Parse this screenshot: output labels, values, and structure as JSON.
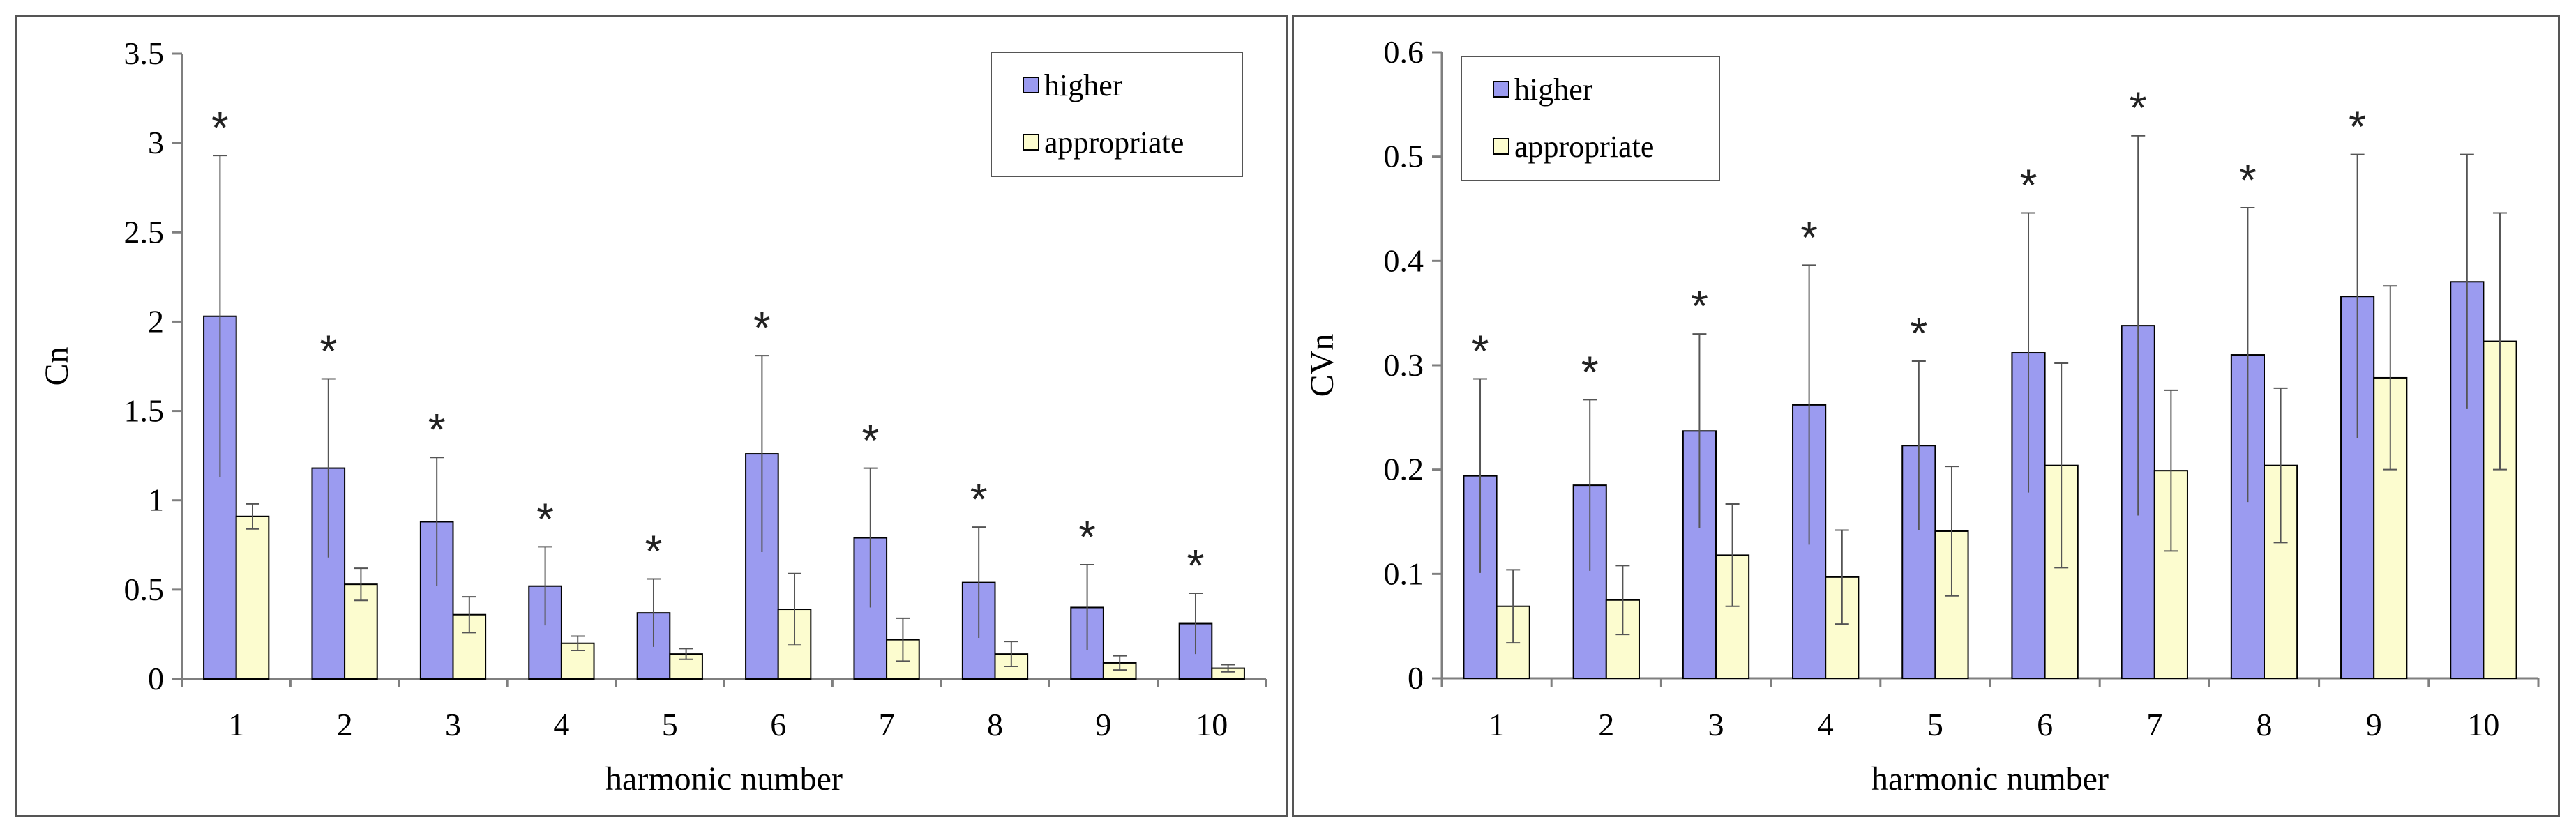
{
  "colors": {
    "higher": "#9b9bf0",
    "appropriate": "#fcfccf",
    "axis": "#7f7f7f",
    "bar_stroke": "#000000"
  },
  "chart_data": [
    {
      "type": "bar",
      "title": "",
      "xlabel": "harmonic number",
      "ylabel": "Cn",
      "ylim": [
        0,
        3.5
      ],
      "yticks": [
        0,
        0.5,
        1,
        1.5,
        2,
        2.5,
        3,
        3.5
      ],
      "ytick_labels": [
        "0",
        "0.5",
        "1",
        "1.5",
        "2",
        "2.5",
        "3",
        "3.5"
      ],
      "categories": [
        "1",
        "2",
        "3",
        "4",
        "5",
        "6",
        "7",
        "8",
        "9",
        "10"
      ],
      "legend_position": "top-right",
      "significance_marker": "*",
      "significant": [
        true,
        true,
        true,
        true,
        true,
        true,
        true,
        true,
        true,
        true
      ],
      "series": [
        {
          "name": "higher",
          "values": [
            2.03,
            1.18,
            0.88,
            0.52,
            0.37,
            1.26,
            0.79,
            0.54,
            0.4,
            0.31
          ],
          "errors": [
            0.9,
            0.5,
            0.36,
            0.22,
            0.19,
            0.55,
            0.39,
            0.31,
            0.24,
            0.17
          ]
        },
        {
          "name": "appropriate",
          "values": [
            0.91,
            0.53,
            0.36,
            0.2,
            0.14,
            0.39,
            0.22,
            0.14,
            0.09,
            0.06
          ],
          "errors": [
            0.07,
            0.09,
            0.1,
            0.04,
            0.03,
            0.2,
            0.12,
            0.07,
            0.04,
            0.02
          ]
        }
      ]
    },
    {
      "type": "bar",
      "title": "",
      "xlabel": "harmonic number",
      "ylabel": "CVn",
      "ylim": [
        0,
        0.6
      ],
      "yticks": [
        0,
        0.1,
        0.2,
        0.3,
        0.4,
        0.5,
        0.6
      ],
      "ytick_labels": [
        "0",
        "0.1",
        "0.2",
        "0.3",
        "0.4",
        "0.5",
        "0.6"
      ],
      "categories": [
        "1",
        "2",
        "3",
        "4",
        "5",
        "6",
        "7",
        "8",
        "9",
        "10"
      ],
      "legend_position": "top-left",
      "significance_marker": "*",
      "significant": [
        true,
        true,
        true,
        true,
        true,
        true,
        true,
        true,
        true,
        false
      ],
      "series": [
        {
          "name": "higher",
          "values": [
            0.194,
            0.185,
            0.237,
            0.262,
            0.223,
            0.312,
            0.338,
            0.31,
            0.366,
            0.38
          ],
          "errors": [
            0.093,
            0.082,
            0.093,
            0.134,
            0.081,
            0.134,
            0.182,
            0.141,
            0.136,
            0.122
          ]
        },
        {
          "name": "appropriate",
          "values": [
            0.069,
            0.075,
            0.118,
            0.097,
            0.141,
            0.204,
            0.199,
            0.204,
            0.288,
            0.323
          ],
          "errors": [
            0.035,
            0.033,
            0.049,
            0.045,
            0.062,
            0.098,
            0.077,
            0.074,
            0.088,
            0.123
          ]
        }
      ]
    }
  ]
}
